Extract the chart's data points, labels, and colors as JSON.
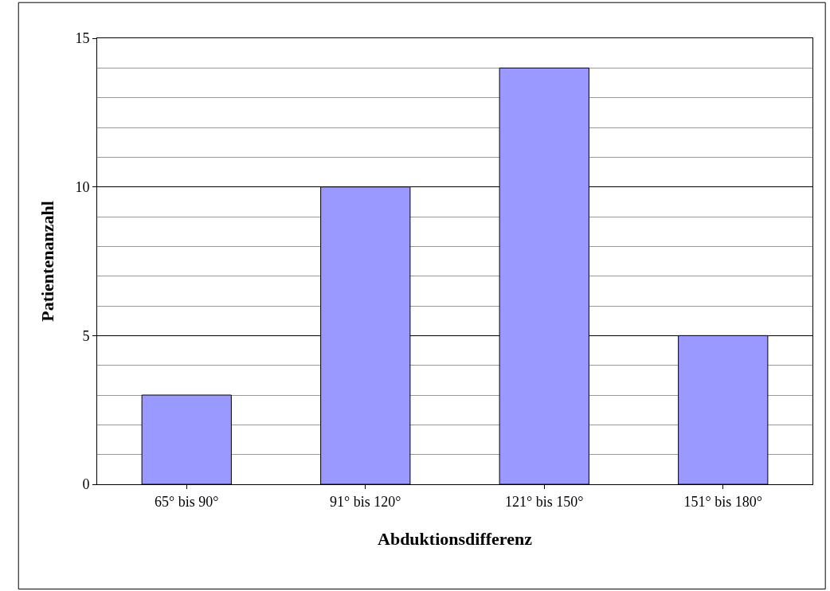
{
  "chart_data": {
    "type": "bar",
    "xlabel": "Abduktionsdifferenz",
    "ylabel": "Patientenanzahl",
    "categories": [
      "65° bis 90°",
      "91° bis 120°",
      "121° bis 150°",
      "151° bis 180°"
    ],
    "values": [
      3,
      10,
      14,
      5
    ],
    "color": "#9999ff",
    "ylim": [
      0,
      15
    ],
    "yticks": [
      0,
      5,
      10,
      15
    ],
    "grid": "y"
  }
}
